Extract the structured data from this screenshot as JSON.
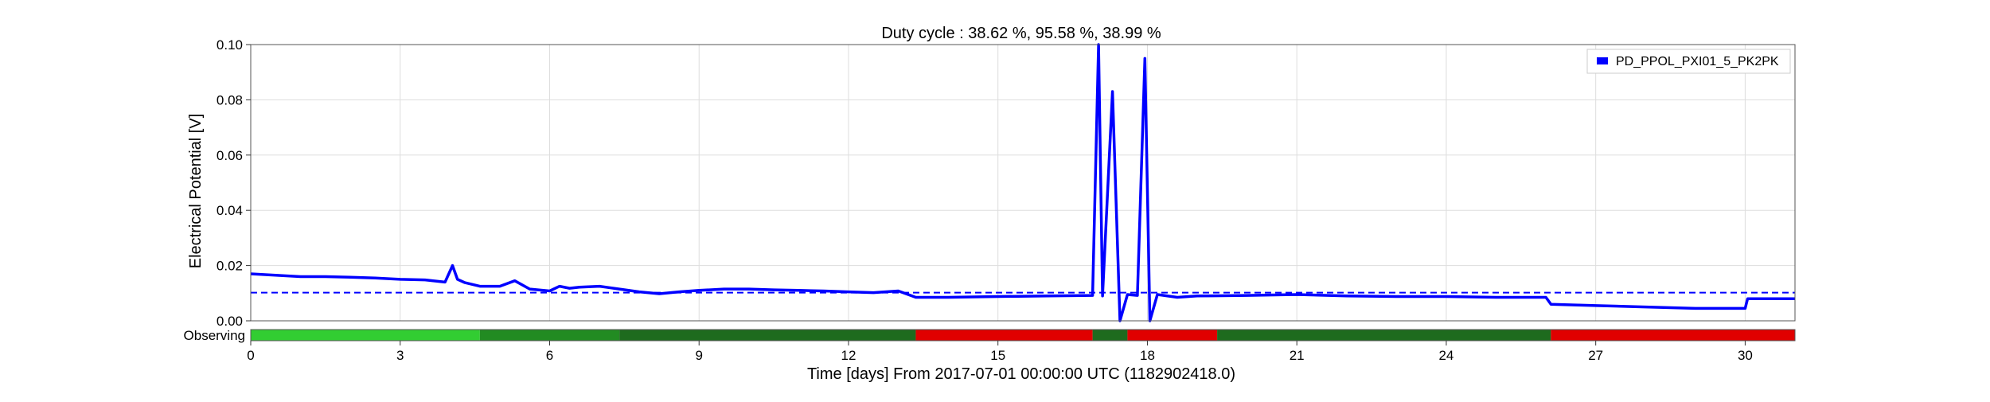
{
  "chart_data": {
    "type": "line",
    "title": "Duty cycle : 38.62 %, 95.58 %, 38.99 %",
    "xlabel": "Time [days] From 2017-07-01 00:00:00 UTC (1182902418.0)",
    "ylabel": "Electrical Potential [V]",
    "xlim": [
      0,
      31
    ],
    "ylim": [
      0,
      0.1
    ],
    "x_ticks": [
      0,
      3,
      6,
      9,
      12,
      15,
      18,
      21,
      24,
      27,
      30
    ],
    "y_ticks": [
      "0.00",
      "0.02",
      "0.04",
      "0.06",
      "0.08",
      "0.10"
    ],
    "grid": true,
    "legend_position": "top-right",
    "series": [
      {
        "name": "PD_PPOL_PXI01_5_PK2PK",
        "color": "#0000ff",
        "x": [
          0,
          0.5,
          1,
          1.5,
          2,
          2.5,
          3,
          3.5,
          3.9,
          4.05,
          4.15,
          4.3,
          4.6,
          5,
          5.3,
          5.6,
          6,
          6.2,
          6.4,
          6.6,
          7,
          7.4,
          7.8,
          8.2,
          8.6,
          9,
          9.5,
          10,
          10.5,
          11,
          11.5,
          12,
          12.5,
          13,
          13.35,
          14,
          15,
          16,
          16.9,
          17.02,
          17.1,
          17.3,
          17.45,
          17.6,
          17.8,
          17.95,
          18.05,
          18.2,
          18.6,
          19,
          20,
          21,
          22,
          23,
          24,
          25,
          26,
          26.1,
          27,
          28,
          29,
          30,
          30.05,
          31
        ],
        "y": [
          0.017,
          0.0165,
          0.016,
          0.016,
          0.0158,
          0.0155,
          0.015,
          0.0148,
          0.014,
          0.02,
          0.015,
          0.0138,
          0.0125,
          0.0125,
          0.0145,
          0.0115,
          0.0108,
          0.0125,
          0.0118,
          0.0122,
          0.0125,
          0.0115,
          0.0105,
          0.0098,
          0.0105,
          0.011,
          0.0115,
          0.0115,
          0.0112,
          0.011,
          0.0108,
          0.0105,
          0.0102,
          0.0108,
          0.0085,
          0.0085,
          0.0088,
          0.009,
          0.0092,
          0.1,
          0.009,
          0.083,
          0.0,
          0.0095,
          0.0092,
          0.095,
          0.0,
          0.0095,
          0.0085,
          0.009,
          0.0092,
          0.0095,
          0.009,
          0.0088,
          0.0088,
          0.0085,
          0.0085,
          0.006,
          0.0055,
          0.005,
          0.0045,
          0.0045,
          0.008,
          0.008
        ]
      },
      {
        "name": "",
        "style": "dashed",
        "color": "#0000ff",
        "x": [
          0,
          4.3,
          4.3,
          26.1,
          26.1,
          31
        ],
        "y": [
          0.0102,
          0.0102,
          0.0102,
          0.0102,
          0.0102,
          0.0102
        ]
      }
    ],
    "state_bar": {
      "label": "Observing",
      "segments": [
        {
          "start": 0,
          "end": 4.6,
          "color": "#32cd32"
        },
        {
          "start": 4.6,
          "end": 7.4,
          "color": "#228b22"
        },
        {
          "start": 7.4,
          "end": 13.35,
          "color": "#1e6b1e"
        },
        {
          "start": 13.35,
          "end": 16.9,
          "color": "#e00000"
        },
        {
          "start": 16.9,
          "end": 17.6,
          "color": "#1e6b1e"
        },
        {
          "start": 17.6,
          "end": 19.4,
          "color": "#e00000"
        },
        {
          "start": 19.4,
          "end": 26.1,
          "color": "#1e6b1e"
        },
        {
          "start": 26.1,
          "end": 31,
          "color": "#e00000"
        }
      ]
    }
  }
}
